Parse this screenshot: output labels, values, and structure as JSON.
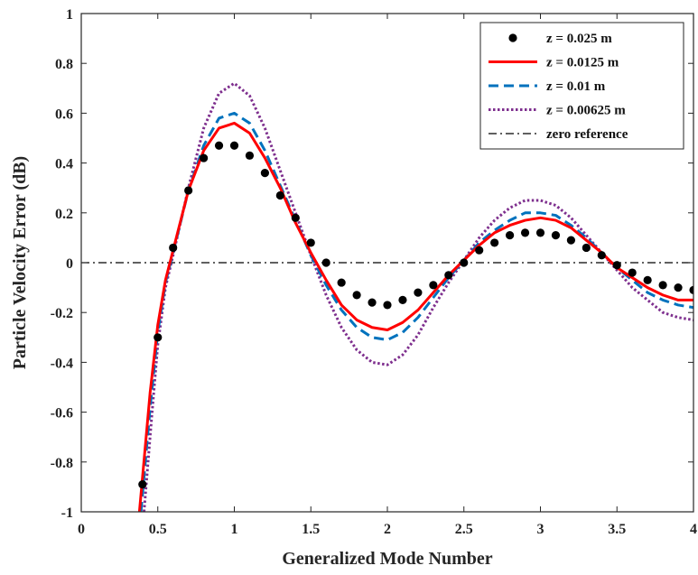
{
  "chart_data": {
    "type": "line",
    "xlabel": "Generalized Mode Number",
    "ylabel": "Particle Velocity Error (dB)",
    "xlim": [
      0,
      4
    ],
    "ylim": [
      -1,
      1
    ],
    "xticks": [
      0,
      0.5,
      1,
      1.5,
      2,
      2.5,
      3,
      3.5,
      4
    ],
    "yticks": [
      -1,
      -0.8,
      -0.6,
      -0.4,
      -0.2,
      0,
      0.2,
      0.4,
      0.6,
      0.8,
      1
    ],
    "xtick_labels": [
      "0",
      "0.5",
      "1",
      "1.5",
      "2",
      "2.5",
      "3",
      "3.5",
      "4"
    ],
    "ytick_labels": [
      "-1",
      "-0.8",
      "-0.6",
      "-0.4",
      "-0.2",
      "0",
      "0.2",
      "0.4",
      "0.6",
      "0.8",
      "1"
    ],
    "grid": false,
    "legend_position": "top-right",
    "series": [
      {
        "name": "z = 0.025 m",
        "style": "dots",
        "color": "#000000",
        "x": [
          0.4,
          0.5,
          0.6,
          0.7,
          0.8,
          0.9,
          1.0,
          1.1,
          1.2,
          1.3,
          1.4,
          1.5,
          1.6,
          1.7,
          1.8,
          1.9,
          2.0,
          2.1,
          2.2,
          2.3,
          2.4,
          2.5,
          2.6,
          2.7,
          2.8,
          2.9,
          3.0,
          3.1,
          3.2,
          3.3,
          3.4,
          3.5,
          3.6,
          3.7,
          3.8,
          3.9,
          4.0
        ],
        "y": [
          -0.89,
          -0.3,
          0.06,
          0.29,
          0.42,
          0.47,
          0.47,
          0.43,
          0.36,
          0.27,
          0.18,
          0.08,
          0.0,
          -0.08,
          -0.13,
          -0.16,
          -0.17,
          -0.15,
          -0.12,
          -0.09,
          -0.05,
          0.0,
          0.05,
          0.08,
          0.11,
          0.12,
          0.12,
          0.11,
          0.09,
          0.06,
          0.03,
          -0.01,
          -0.04,
          -0.07,
          -0.09,
          -0.1,
          -0.11
        ]
      },
      {
        "name": "z = 0.0125 m",
        "style": "solid",
        "color": "#ff0000",
        "x": [
          0.38,
          0.45,
          0.5,
          0.55,
          0.6,
          0.7,
          0.8,
          0.9,
          1.0,
          1.1,
          1.2,
          1.3,
          1.4,
          1.5,
          1.6,
          1.7,
          1.8,
          1.9,
          2.0,
          2.1,
          2.2,
          2.3,
          2.4,
          2.5,
          2.6,
          2.7,
          2.8,
          2.9,
          3.0,
          3.1,
          3.2,
          3.3,
          3.4,
          3.5,
          3.6,
          3.7,
          3.8,
          3.9,
          4.0
        ],
        "y": [
          -1.0,
          -0.52,
          -0.25,
          -0.07,
          0.05,
          0.29,
          0.45,
          0.54,
          0.56,
          0.52,
          0.42,
          0.3,
          0.16,
          0.04,
          -0.07,
          -0.17,
          -0.23,
          -0.26,
          -0.27,
          -0.24,
          -0.19,
          -0.12,
          -0.05,
          0.01,
          0.07,
          0.12,
          0.15,
          0.17,
          0.18,
          0.17,
          0.14,
          0.09,
          0.04,
          -0.02,
          -0.06,
          -0.1,
          -0.13,
          -0.15,
          -0.15
        ]
      },
      {
        "name": "z = 0.01 m",
        "style": "dashed",
        "color": "#0072bd",
        "x": [
          0.39,
          0.45,
          0.5,
          0.55,
          0.6,
          0.7,
          0.8,
          0.9,
          1.0,
          1.1,
          1.2,
          1.3,
          1.4,
          1.5,
          1.6,
          1.7,
          1.8,
          1.9,
          2.0,
          2.1,
          2.2,
          2.3,
          2.4,
          2.5,
          2.6,
          2.7,
          2.8,
          2.9,
          3.0,
          3.1,
          3.2,
          3.3,
          3.4,
          3.5,
          3.6,
          3.7,
          3.8,
          3.9,
          4.0
        ],
        "y": [
          -1.0,
          -0.58,
          -0.28,
          -0.08,
          0.04,
          0.29,
          0.47,
          0.58,
          0.6,
          0.56,
          0.45,
          0.31,
          0.17,
          0.03,
          -0.09,
          -0.19,
          -0.26,
          -0.3,
          -0.31,
          -0.28,
          -0.22,
          -0.14,
          -0.06,
          0.01,
          0.08,
          0.13,
          0.17,
          0.2,
          0.2,
          0.19,
          0.15,
          0.1,
          0.04,
          -0.02,
          -0.07,
          -0.12,
          -0.15,
          -0.17,
          -0.18
        ]
      },
      {
        "name": "z = 0.00625 m",
        "style": "dotted",
        "color": "#7e2f8e",
        "x": [
          0.41,
          0.46,
          0.5,
          0.55,
          0.6,
          0.7,
          0.8,
          0.9,
          1.0,
          1.1,
          1.2,
          1.3,
          1.4,
          1.5,
          1.6,
          1.7,
          1.8,
          1.9,
          2.0,
          2.1,
          2.2,
          2.3,
          2.4,
          2.5,
          2.6,
          2.7,
          2.8,
          2.9,
          3.0,
          3.1,
          3.2,
          3.3,
          3.4,
          3.5,
          3.6,
          3.7,
          3.8,
          3.9,
          4.0
        ],
        "y": [
          -1.0,
          -0.62,
          -0.33,
          -0.1,
          0.03,
          0.3,
          0.54,
          0.68,
          0.72,
          0.67,
          0.54,
          0.37,
          0.2,
          0.03,
          -0.13,
          -0.26,
          -0.35,
          -0.4,
          -0.41,
          -0.37,
          -0.29,
          -0.18,
          -0.08,
          0.01,
          0.1,
          0.17,
          0.22,
          0.25,
          0.25,
          0.23,
          0.18,
          0.11,
          0.04,
          -0.03,
          -0.1,
          -0.15,
          -0.2,
          -0.22,
          -0.23
        ]
      },
      {
        "name": "zero reference",
        "style": "dashdot",
        "color": "#000000",
        "x": [
          0,
          4
        ],
        "y": [
          0,
          0
        ]
      }
    ]
  }
}
